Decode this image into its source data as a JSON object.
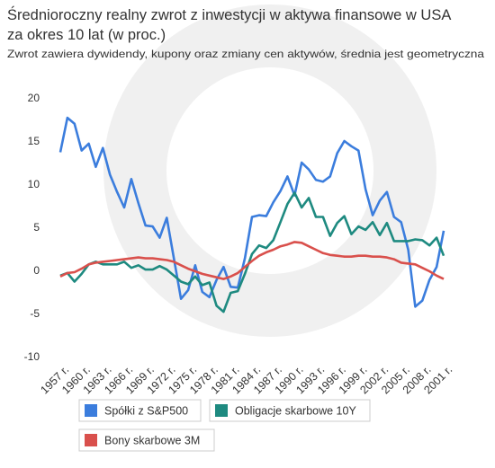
{
  "chart_data": {
    "type": "line",
    "title": [
      "Średnioroczny realny zwrot z inwestycji w aktywa finansowe w USA",
      "za okres 10 lat (w proc.)"
    ],
    "subtitle": "Zwrot zawiera dywidendy, kupony oraz zmiany cen aktywów, średnia jest geometryczna",
    "categories": [
      "1957 r.",
      null,
      null,
      "1960 r.",
      null,
      null,
      "1963 r.",
      null,
      null,
      "1966 r.",
      null,
      null,
      "1969 r.",
      null,
      null,
      "1972 r.",
      null,
      null,
      "1975 r.",
      null,
      null,
      "1978 r.",
      null,
      null,
      "1981 r.",
      null,
      null,
      "1984 r.",
      null,
      null,
      "1987 r.",
      null,
      null,
      "1990 r.",
      null,
      null,
      "1993 r.",
      null,
      null,
      "1996 r.",
      null,
      null,
      "1999 r.",
      null,
      null,
      "2002 r.",
      null,
      null,
      "2005 r.",
      null,
      null,
      "2008 r.",
      null,
      null,
      "2001 r."
    ],
    "series": [
      {
        "name": "Spółki z S&P500",
        "color": "#3b7ddd",
        "values": [
          13.8,
          17.8,
          17.1,
          14,
          14.8,
          12.1,
          14.3,
          11.2,
          9.2,
          7.4,
          10.7,
          7.9,
          5.3,
          5.2,
          3.9,
          6.2,
          1.5,
          -3.2,
          -2.2,
          0.7,
          -2.4,
          -3,
          -1,
          0.5,
          -1.8,
          -1.9,
          1.5,
          6.3,
          6.5,
          6.4,
          8,
          9.3,
          11,
          8.8,
          12.6,
          11.8,
          10.6,
          10.4,
          11,
          13.7,
          15.1,
          14.5,
          14,
          9.5,
          6.5,
          8.2,
          9.2,
          6.3,
          5.7,
          2.5,
          -4.1,
          -3.4,
          -1,
          0.5,
          4.7
        ]
      },
      {
        "name": "Obligacje skarbowe 10Y",
        "color": "#1e8a80",
        "values": [
          -0.5,
          -0.2,
          -1.2,
          -0.3,
          0.8,
          1.1,
          0.8,
          0.8,
          0.8,
          1.1,
          0.4,
          0.7,
          0.2,
          0.2,
          0.6,
          0.2,
          -0.5,
          -1.2,
          -1.5,
          -0.6,
          -1.6,
          -1.3,
          -4,
          -4.7,
          -2.5,
          -2.3,
          -0.3,
          2,
          3,
          2.7,
          3.6,
          5.7,
          7.8,
          9.1,
          7.4,
          8.5,
          6.3,
          6.3,
          4.1,
          5.6,
          6.4,
          4.3,
          5.2,
          4.8,
          5.7,
          4.2,
          5.6,
          3.5,
          3.5,
          3.5,
          3.7,
          3.6,
          3.0,
          3.9,
          1.8
        ]
      },
      {
        "name": "Bony skarbowe 3M",
        "color": "#d9504c",
        "values": [
          -0.6,
          -0.2,
          -0.1,
          0.3,
          0.8,
          1.0,
          1.1,
          1.2,
          1.3,
          1.4,
          1.5,
          1.6,
          1.5,
          1.5,
          1.4,
          1.3,
          1.1,
          0.7,
          0.3,
          0.0,
          -0.3,
          -0.5,
          -0.7,
          -0.9,
          -0.6,
          -0.2,
          0.5,
          1.2,
          1.8,
          2.2,
          2.5,
          2.9,
          3.1,
          3.4,
          3.3,
          2.9,
          2.5,
          2.1,
          1.9,
          1.8,
          1.7,
          1.7,
          1.8,
          1.8,
          1.7,
          1.7,
          1.6,
          1.4,
          1.0,
          0.9,
          0.8,
          0.4,
          0.0,
          -0.5,
          -0.9
        ]
      }
    ],
    "ylim": [
      -10,
      20
    ],
    "yticks": [
      -10,
      -5,
      0,
      5,
      10,
      15,
      20
    ],
    "grid": false
  }
}
